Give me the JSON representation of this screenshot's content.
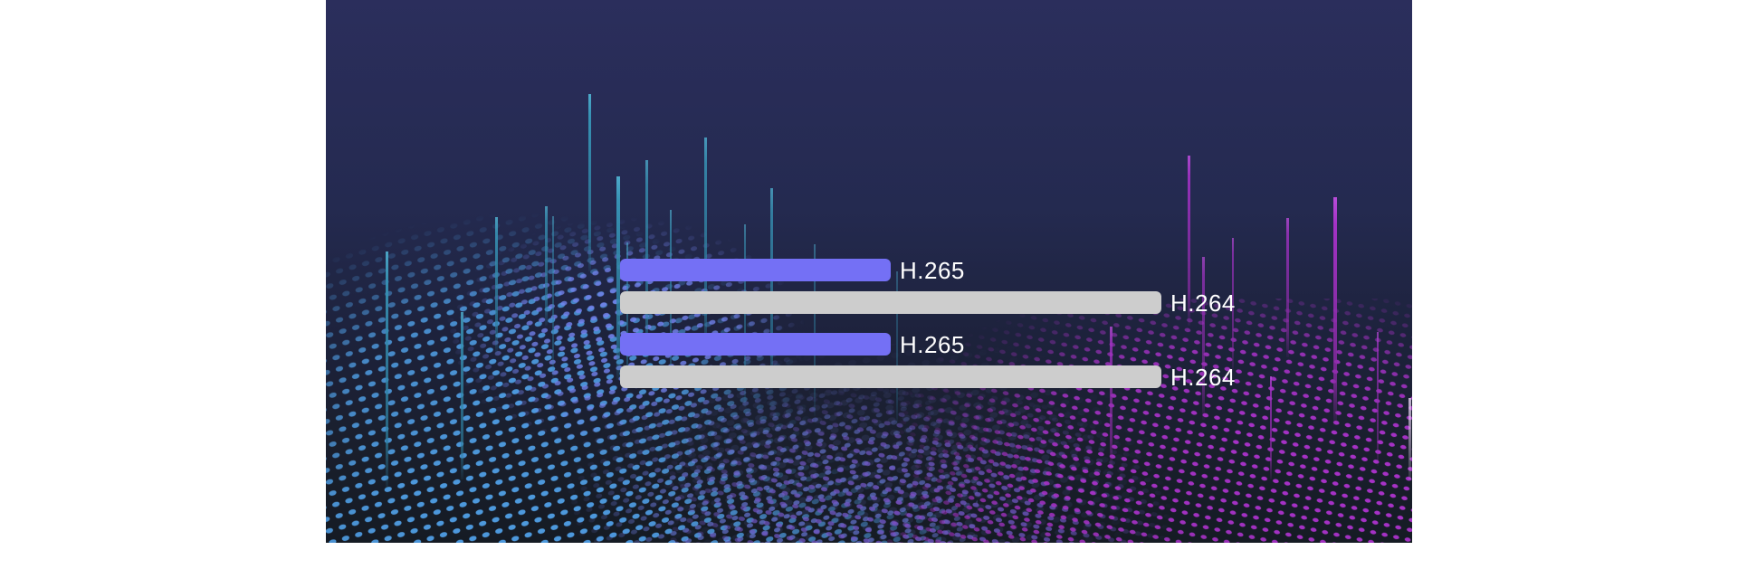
{
  "page": {
    "background_color": "#ffffff"
  },
  "banner": {
    "description": "Dark particle-wave banner comparing H.265 and H.264 codecs",
    "background": {
      "gradient_top_color": "#2b2e5c",
      "gradient_bottom_color": "#151b24",
      "blue_dots_color": "#4e9be0",
      "periwinkle_dots_color": "#7383ee",
      "violet_dots_color": "#6f56c2",
      "magenta_dots_color": "#a832c8",
      "faint_dots_color": "#2c3352",
      "teal_glow_line_color": "#3792b4",
      "magenta_glow_line_color": "#a332c6",
      "lavender_edge_line_color": "#e9d2f4"
    }
  },
  "chart_data": {
    "type": "bar",
    "orientation": "horizontal",
    "title": "",
    "xlabel": "",
    "ylabel": "",
    "axes_visible": false,
    "grid": false,
    "legend": "none",
    "value_unit": "relative bar length, H.264 = 100",
    "label_text_color": "#ffffff",
    "groups": [
      {
        "bars": [
          {
            "label": "H.265",
            "value": 50,
            "color": "#7470f5"
          },
          {
            "label": "H.264",
            "value": 100,
            "color": "#cdcdcd"
          }
        ]
      },
      {
        "bars": [
          {
            "label": "H.265",
            "value": 50,
            "color": "#7470f5"
          },
          {
            "label": "H.264",
            "value": 100,
            "color": "#cdcdcd"
          }
        ]
      }
    ]
  }
}
